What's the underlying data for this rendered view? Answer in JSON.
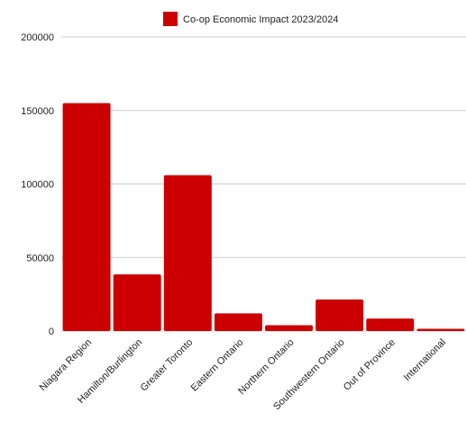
{
  "chart_data": {
    "type": "bar",
    "title": "",
    "xlabel": "",
    "ylabel": "",
    "categories": [
      "Niagara Region",
      "Hamilton/Burlington",
      "Greater Toronto",
      "Eastern Ontario",
      "Northern Ontario",
      "Southwestern Ontario",
      "Out of Province",
      "International"
    ],
    "series": [
      {
        "name": "Co-op Economic Impact 2023/2024",
        "values": [
          155000,
          38500,
          106000,
          12000,
          4000,
          21500,
          8500,
          1500
        ]
      }
    ],
    "ylim": [
      0,
      200000
    ],
    "yticks": [
      "200000",
      "150000",
      "100000",
      "50000",
      "0"
    ],
    "grid": true,
    "legend": "top-center",
    "colors": {
      "bar": "#cc0000",
      "grid": "#cccccc"
    }
  }
}
